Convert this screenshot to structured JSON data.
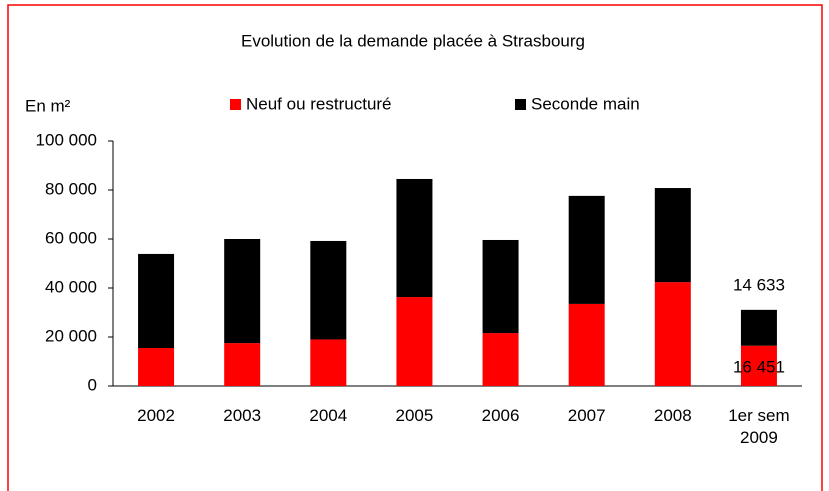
{
  "chart_data": {
    "type": "stacked_bar",
    "title": "Evolution de la demande placée à Strasbourg",
    "ylabel": "En m²",
    "categories": [
      "2002",
      "2003",
      "2004",
      "2005",
      "2006",
      "2007",
      "2008",
      "1er sem 2009"
    ],
    "series": [
      {
        "name": "Neuf ou restructuré",
        "color": "#ff0000",
        "values": [
          15500,
          17500,
          19000,
          36300,
          21600,
          33500,
          42400,
          16451
        ],
        "value_labels": [
          null,
          null,
          null,
          null,
          null,
          null,
          null,
          "16 451"
        ]
      },
      {
        "name": "Seconde main",
        "color": "#000000",
        "values": [
          38400,
          42500,
          40200,
          48200,
          38000,
          44100,
          38400,
          14633
        ],
        "value_labels": [
          null,
          null,
          null,
          null,
          null,
          null,
          null,
          "14 633"
        ]
      }
    ],
    "ylim": [
      0,
      100000
    ],
    "yticks": [
      0,
      {
        "value": 20000,
        "label": "20 000"
      },
      {
        "value": 40000,
        "label": "40 000"
      },
      {
        "value": 60000,
        "label": "60 000"
      },
      {
        "value": 80000,
        "label": "80 000"
      },
      {
        "value": 100000,
        "label": "100 000"
      }
    ],
    "grid": false,
    "legend": "top"
  }
}
